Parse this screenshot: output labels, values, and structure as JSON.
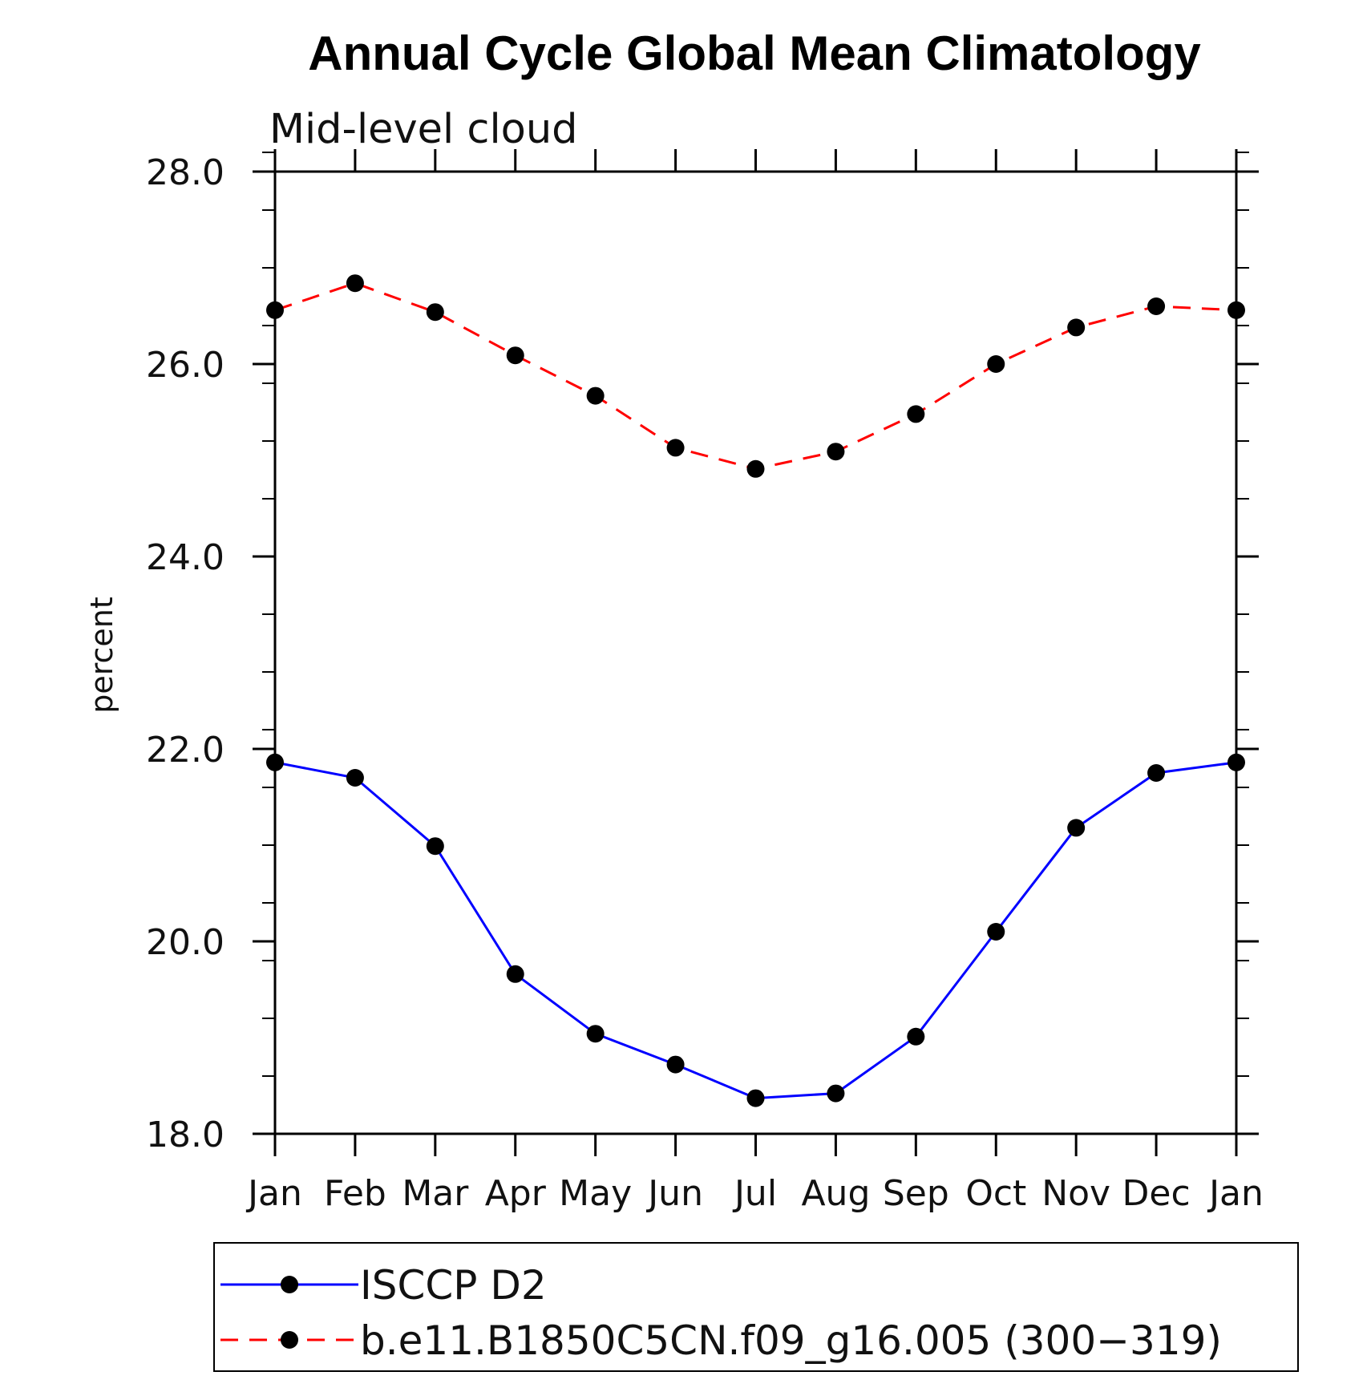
{
  "chart_data": {
    "type": "line",
    "title": "Annual Cycle Global Mean Climatology",
    "subtitle": "Mid-level cloud",
    "xlabel": "",
    "ylabel": "percent",
    "categories": [
      "Jan",
      "Feb",
      "Mar",
      "Apr",
      "May",
      "Jun",
      "Jul",
      "Aug",
      "Sep",
      "Oct",
      "Nov",
      "Dec",
      "Jan"
    ],
    "ylim": [
      18.0,
      28.0
    ],
    "yticks": [
      "18.0",
      "20.0",
      "22.0",
      "24.0",
      "26.0",
      "28.0"
    ],
    "grid": false,
    "legend_placement": "bottom",
    "series": [
      {
        "name": "ISCCP D2",
        "color": "#0000ff",
        "line_style": "solid",
        "marker": "filled-circle",
        "marker_color": "#000000",
        "values": [
          21.86,
          21.7,
          20.99,
          19.66,
          19.04,
          18.72,
          18.37,
          18.42,
          19.01,
          20.1,
          21.18,
          21.75,
          21.86
        ]
      },
      {
        "name": "b.e11.B1850C5CN.f09_g16.005 (300−319)",
        "color": "#ff0000",
        "line_style": "dashed",
        "marker": "filled-circle",
        "marker_color": "#000000",
        "values": [
          26.56,
          26.84,
          26.54,
          26.09,
          25.67,
          25.13,
          24.91,
          25.09,
          25.48,
          26.0,
          26.38,
          26.6,
          26.56
        ]
      }
    ]
  }
}
